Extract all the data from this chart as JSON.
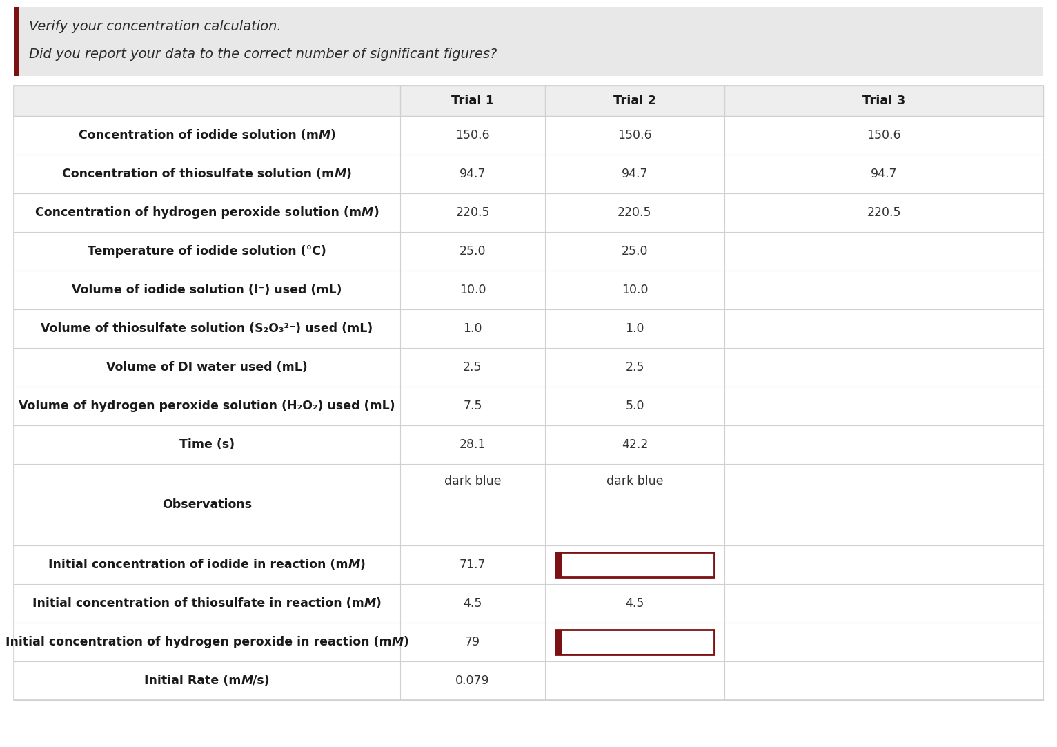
{
  "header_text_line1": "Verify your concentration calculation.",
  "header_text_line2": "Did you report your data to the correct number of significant figures?",
  "header_bg": "#e8e8e8",
  "dark_red": "#7b1113",
  "border_color": "#d0d0d0",
  "col_headers": [
    "Trial 1",
    "Trial 2",
    "Trial 3"
  ],
  "rows": [
    {
      "label": [
        "Concentration of iodide solution (m",
        "M",
        ")"
      ],
      "label_style": [
        "bold",
        "bold_italic",
        "bold"
      ],
      "t1": "150.6",
      "t2": "150.6",
      "t3": "150.6",
      "t2_box": false,
      "tall": false
    },
    {
      "label": [
        "Concentration of thiosulfate solution (m",
        "M",
        ")"
      ],
      "label_style": [
        "bold",
        "bold_italic",
        "bold"
      ],
      "t1": "94.7",
      "t2": "94.7",
      "t3": "94.7",
      "t2_box": false,
      "tall": false
    },
    {
      "label": [
        "Concentration of hydrogen peroxide solution (m",
        "M",
        ")"
      ],
      "label_style": [
        "bold",
        "bold_italic",
        "bold"
      ],
      "t1": "220.5",
      "t2": "220.5",
      "t3": "220.5",
      "t2_box": false,
      "tall": false
    },
    {
      "label": [
        "Temperature of iodide solution (°C)"
      ],
      "label_style": [
        "bold"
      ],
      "t1": "25.0",
      "t2": "25.0",
      "t3": "",
      "t2_box": false,
      "tall": false
    },
    {
      "label": [
        "Volume of iodide solution (I⁻) used (mL)"
      ],
      "label_style": [
        "bold"
      ],
      "t1": "10.0",
      "t2": "10.0",
      "t3": "",
      "t2_box": false,
      "tall": false
    },
    {
      "label": [
        "Volume of thiosulfate solution (S₂O₃²⁻) used (mL)"
      ],
      "label_style": [
        "bold"
      ],
      "t1": "1.0",
      "t2": "1.0",
      "t3": "",
      "t2_box": false,
      "tall": false
    },
    {
      "label": [
        "Volume of DI water used (mL)"
      ],
      "label_style": [
        "bold"
      ],
      "t1": "2.5",
      "t2": "2.5",
      "t3": "",
      "t2_box": false,
      "tall": false
    },
    {
      "label": [
        "Volume of hydrogen peroxide solution (H₂O₂) used (mL)"
      ],
      "label_style": [
        "bold"
      ],
      "t1": "7.5",
      "t2": "5.0",
      "t3": "",
      "t2_box": false,
      "tall": false
    },
    {
      "label": [
        "Time (s)"
      ],
      "label_style": [
        "bold"
      ],
      "t1": "28.1",
      "t2": "42.2",
      "t3": "",
      "t2_box": false,
      "tall": false
    },
    {
      "label": [
        "Observations"
      ],
      "label_style": [
        "bold"
      ],
      "t1": "dark blue",
      "t2": "dark blue",
      "t3": "",
      "t1_top": true,
      "t2_top": true,
      "t2_box": false,
      "tall": true
    },
    {
      "label": [
        "Initial concentration of iodide in reaction (m",
        "M",
        ")"
      ],
      "label_style": [
        "bold",
        "bold_italic",
        "bold"
      ],
      "t1": "71.7",
      "t2": "",
      "t3": "",
      "t2_box": true,
      "tall": false
    },
    {
      "label": [
        "Initial concentration of thiosulfate in reaction (m",
        "M",
        ")"
      ],
      "label_style": [
        "bold",
        "bold_italic",
        "bold"
      ],
      "t1": "4.5",
      "t2": "4.5",
      "t3": "",
      "t2_box": false,
      "tall": false
    },
    {
      "label": [
        "Initial concentration of hydrogen peroxide in reaction (m",
        "M",
        ")"
      ],
      "label_style": [
        "bold",
        "bold_italic",
        "bold"
      ],
      "t1": "79",
      "t2": "",
      "t3": "",
      "t2_box": true,
      "tall": false
    },
    {
      "label": [
        "Initial Rate (m",
        "M",
        "/s)"
      ],
      "label_style": [
        "bold",
        "bold_italic",
        "bold"
      ],
      "t1": "0.079",
      "t2": "",
      "t3": "",
      "t2_box": false,
      "tall": false
    }
  ]
}
